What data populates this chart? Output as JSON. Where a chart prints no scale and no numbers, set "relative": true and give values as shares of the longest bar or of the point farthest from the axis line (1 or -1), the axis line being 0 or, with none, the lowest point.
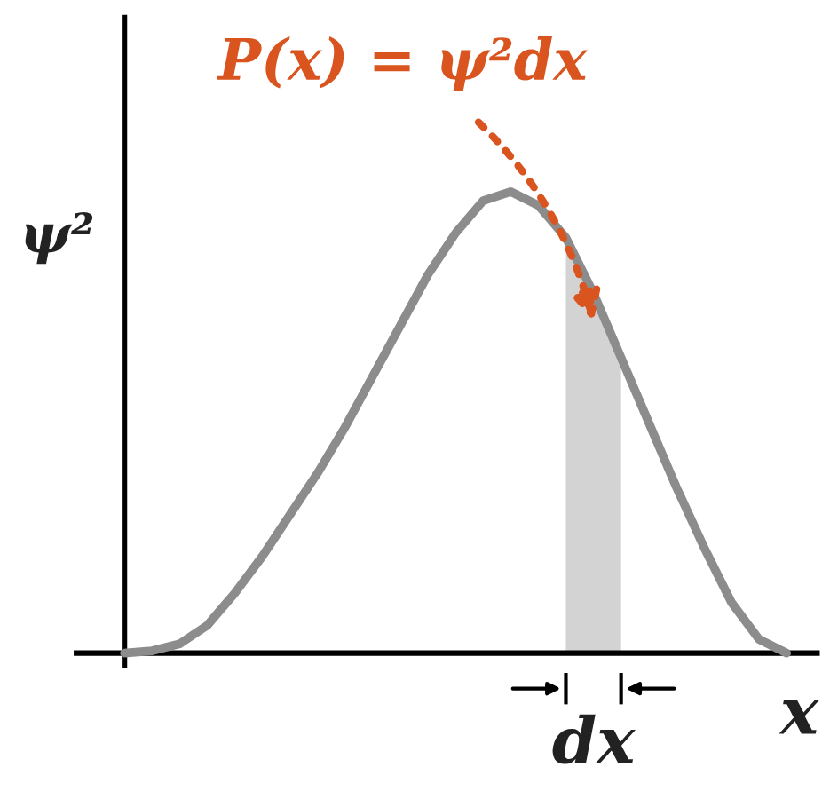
{
  "chart_data": {
    "type": "line",
    "relative": true,
    "xlabel": "x",
    "ylabel": "ψ²",
    "categories": [
      null,
      null,
      null,
      null,
      null,
      null,
      null,
      null,
      null,
      null,
      null,
      null,
      null,
      null,
      null,
      null,
      null,
      null,
      null,
      null,
      null,
      null,
      null,
      null,
      null
    ],
    "series": [
      {
        "type": "area",
        "color": "#d3d3d3",
        "values": [
          null,
          null,
          null,
          null,
          null,
          null,
          null,
          null,
          null,
          null,
          null,
          null,
          null,
          null,
          null,
          null,
          0.9,
          0.78,
          0.64,
          null,
          null,
          null,
          null,
          null,
          null
        ]
      },
      {
        "color": "#8c8c8c",
        "values": [
          0,
          0.005,
          0.02,
          0.06,
          0.13,
          0.21,
          0.3,
          0.39,
          0.49,
          0.6,
          0.71,
          0.82,
          0.91,
          0.98,
          1,
          0.97,
          0.9,
          0.78,
          0.64,
          0.5,
          0.36,
          0.23,
          0.11,
          0.03,
          0
        ]
      }
    ],
    "annotations": [
      "P(x) = ψ²dx",
      "dx"
    ]
  }
}
